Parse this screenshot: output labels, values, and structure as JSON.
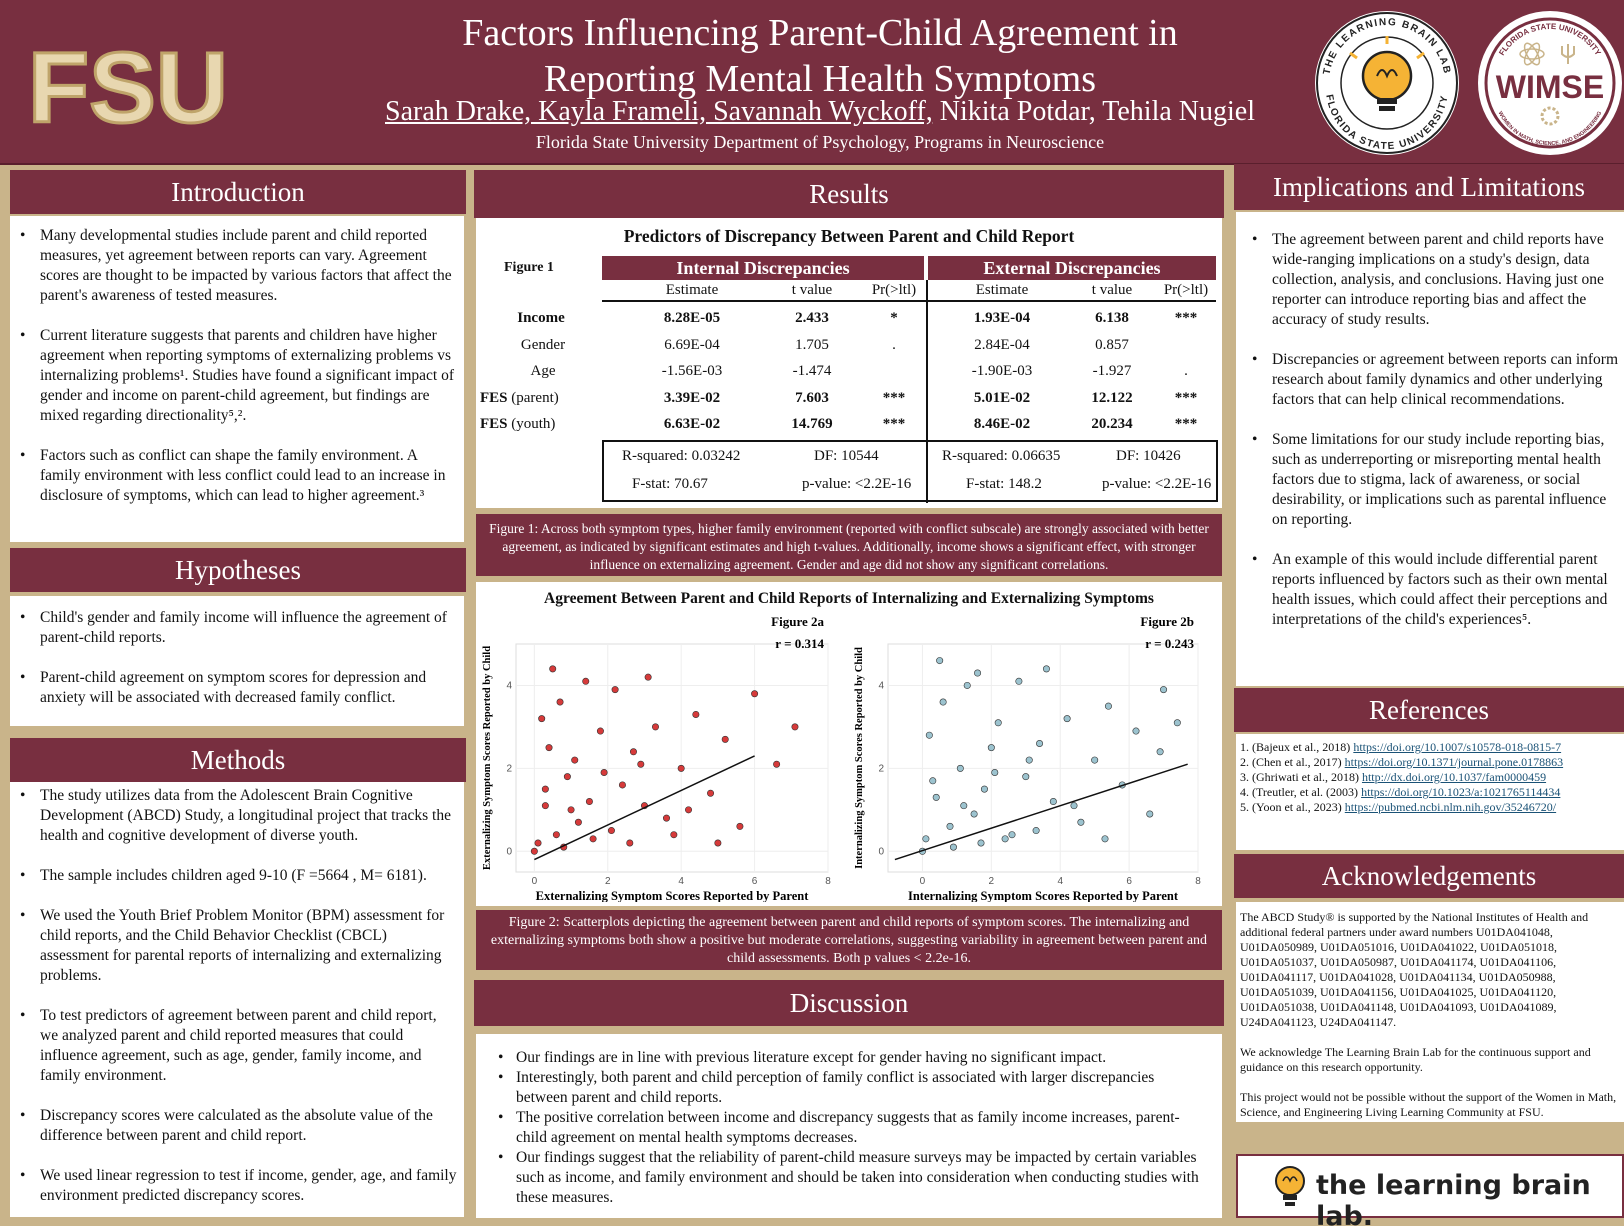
{
  "header": {
    "logo_text": "FSU",
    "title_line1": "Factors Influencing Parent-Child Agreement in",
    "title_line2": "Reporting Mental Health Symptoms",
    "authors_underlined": "Sarah Drake, Kayla Frameli, Savannah Wyckoff,",
    "authors_rest": " Nikita Potdar, Tehila Nugiel",
    "affiliation": "Florida State University Department of Psychology, Programs in Neuroscience",
    "lab_seal_top": "THE LEARNING BRAIN LAB",
    "lab_seal_bottom": "FLORIDA STATE UNIVERSITY",
    "wimse_top": "FLORIDA STATE UNIVERSITY",
    "wimse_word": "WIMSE",
    "wimse_bottom": "WOMEN IN MATH, SCIENCE, AND ENGINEERING"
  },
  "introduction": {
    "heading": "Introduction",
    "items": [
      "Many developmental studies include parent and child reported measures, yet agreement between reports can vary. Agreement scores are thought to be impacted by various factors that affect the parent's awareness of tested measures.",
      "Current literature suggests that parents and children have higher agreement when reporting symptoms of externalizing problems vs internalizing problems¹. Studies have found a significant impact of gender and income on parent-child agreement, but findings are mixed regarding directionality⁵,².",
      "Factors such as conflict can shape the family environment. A family environment with less conflict could lead to an increase in disclosure of symptoms, which can lead to higher agreement.³"
    ]
  },
  "hypotheses": {
    "heading": "Hypotheses",
    "items": [
      "Child's gender and family income will influence the agreement of parent-child reports.",
      "Parent-child agreement on symptom scores for depression and anxiety will be associated with decreased family conflict."
    ]
  },
  "methods": {
    "heading": "Methods",
    "items": [
      "The study utilizes data from the Adolescent Brain Cognitive Development (ABCD) Study, a longitudinal project that tracks the health and cognitive development of diverse youth.",
      "The sample includes children aged 9-10 (F =5664 , M= 6181).",
      "We used the Youth Brief Problem Monitor (BPM) assessment for child reports, and the Child Behavior Checklist (CBCL) assessment for parental reports of internalizing and externalizing problems.",
      "To test predictors of agreement between parent and child report, we analyzed parent and child reported measures that could influence agreement, such as age, gender, family income, and family environment.",
      "Discrepancy scores were calculated as the absolute value of the difference between parent and child report.",
      "We used linear regression to test if income, gender, age, and family environment predicted discrepancy scores."
    ]
  },
  "results": {
    "heading": "Results",
    "table_title": "Predictors of Discrepancy Between Parent and Child Report",
    "figure_label": "Figure 1",
    "internal_header": "Internal Discrepancies",
    "external_header": "External Discrepancies",
    "col_estimate": "Estimate",
    "col_t": "t value",
    "col_p": "Pr(>ltl)",
    "rows": [
      {
        "name": "Income",
        "bold": true,
        "ie": "8.28E-05",
        "it": "2.433",
        "ip": "*",
        "ee": "1.93E-04",
        "et": "6.138",
        "ep": "***"
      },
      {
        "name": "Gender",
        "bold": false,
        "ie": "6.69E-04",
        "it": "1.705",
        "ip": ".",
        "ee": "2.84E-04",
        "et": "0.857",
        "ep": ""
      },
      {
        "name": "Age",
        "bold": false,
        "ie": "-1.56E-03",
        "it": "-1.474",
        "ip": "",
        "ee": "-1.90E-03",
        "et": "-1.927",
        "ep": "."
      },
      {
        "name": "FES",
        "sub": "(parent)",
        "bold": true,
        "ie": "3.39E-02",
        "it": "7.603",
        "ip": "***",
        "ee": "5.01E-02",
        "et": "12.122",
        "ep": "***"
      },
      {
        "name": "FES",
        "sub": "(youth)",
        "bold": true,
        "ie": "6.63E-02",
        "it": "14.769",
        "ip": "***",
        "ee": "8.46E-02",
        "et": "20.234",
        "ep": "***"
      }
    ],
    "int_rsq": "R-squared: 0.03242",
    "int_df": "DF: 10544",
    "int_f": "F-stat: 70.67",
    "int_p": "p-value: <2.2E-16",
    "ext_rsq": "R-squared: 0.06635",
    "ext_df": "DF: 10426",
    "ext_f": "F-stat: 148.2",
    "ext_p": "p-value: <2.2E-16",
    "fig1_caption": "Figure 1: Across both symptom types, higher family environment (reported with conflict subscale) are strongly associated with better agreement, as indicated by significant estimates and high t-values. Additionally, income shows a significant effect, with stronger influence on externalizing agreement. Gender and age did not show any significant correlations.",
    "scatter_title": "Agreement Between Parent and Child Reports of Internalizing and Externalizing Symptoms",
    "fig2_caption": "Figure 2: Scatterplots depicting the agreement between parent and child reports of symptom scores. The internalizing and externalizing symptoms both show a positive but moderate correlations, suggesting variability in agreement between parent and child assessments. Both p values < 2.2e-16."
  },
  "chart_data": [
    {
      "type": "scatter",
      "figure_label": "Figure 2a",
      "annotation": "r = 0.314",
      "xlabel": "Externalizing  Symptom Scores Reported by Parent",
      "ylabel": "Externalizing Symptom Scores Reported by Child",
      "xlim": [
        -0.5,
        8
      ],
      "ylim": [
        -0.5,
        5
      ],
      "xticks": [
        0,
        2,
        4,
        6,
        8
      ],
      "yticks": [
        0,
        2,
        4
      ],
      "color": "#d63a3a",
      "trend": {
        "x": [
          0,
          6
        ],
        "y": [
          -0.2,
          2.3
        ]
      },
      "points": [
        [
          0.1,
          0.2
        ],
        [
          0.3,
          1.1
        ],
        [
          0.6,
          0.4
        ],
        [
          0.9,
          1.8
        ],
        [
          1.2,
          0.7
        ],
        [
          0.4,
          2.5
        ],
        [
          1.5,
          1.2
        ],
        [
          1.8,
          2.9
        ],
        [
          2.1,
          0.5
        ],
        [
          2.4,
          1.6
        ],
        [
          0.2,
          3.2
        ],
        [
          0.7,
          3.6
        ],
        [
          1.1,
          2.2
        ],
        [
          2.7,
          2.4
        ],
        [
          3.0,
          1.1
        ],
        [
          3.3,
          3.0
        ],
        [
          3.6,
          0.8
        ],
        [
          4.0,
          2.0
        ],
        [
          4.4,
          3.3
        ],
        [
          4.8,
          1.4
        ],
        [
          5.2,
          2.7
        ],
        [
          5.6,
          0.6
        ],
        [
          6.0,
          3.8
        ],
        [
          1.4,
          4.1
        ],
        [
          0.5,
          4.4
        ],
        [
          2.2,
          3.9
        ],
        [
          3.1,
          4.2
        ],
        [
          6.6,
          2.1
        ],
        [
          7.1,
          3.0
        ],
        [
          0.0,
          0.0
        ],
        [
          0.8,
          0.1
        ],
        [
          1.6,
          0.3
        ],
        [
          2.6,
          0.2
        ],
        [
          3.8,
          0.4
        ],
        [
          0.3,
          1.5
        ],
        [
          1.0,
          1.0
        ],
        [
          1.9,
          1.9
        ],
        [
          2.9,
          2.1
        ],
        [
          4.2,
          1.0
        ],
        [
          5.0,
          0.2
        ]
      ]
    },
    {
      "type": "scatter",
      "figure_label": "Figure 2b",
      "annotation": "r = 0.243",
      "xlabel": "Internalizing Symptom Scores Reported by Parent",
      "ylabel": "Internalizing Symptom Scores Reported by Child",
      "xlim": [
        -1,
        8
      ],
      "ylim": [
        -0.5,
        5
      ],
      "xticks": [
        0,
        2,
        4,
        6,
        8
      ],
      "yticks": [
        0,
        2,
        4
      ],
      "color": "#9cc3cf",
      "trend": {
        "x": [
          -0.8,
          7.7
        ],
        "y": [
          -0.2,
          2.1
        ]
      },
      "points": [
        [
          0.1,
          0.3
        ],
        [
          0.4,
          1.3
        ],
        [
          0.8,
          0.6
        ],
        [
          1.1,
          2.0
        ],
        [
          1.5,
          0.9
        ],
        [
          0.2,
          2.8
        ],
        [
          1.8,
          1.5
        ],
        [
          2.2,
          3.1
        ],
        [
          2.6,
          0.4
        ],
        [
          3.0,
          1.8
        ],
        [
          0.6,
          3.6
        ],
        [
          1.3,
          4.0
        ],
        [
          2.0,
          2.5
        ],
        [
          3.4,
          2.6
        ],
        [
          3.8,
          1.2
        ],
        [
          4.2,
          3.2
        ],
        [
          4.6,
          0.7
        ],
        [
          5.0,
          2.2
        ],
        [
          5.4,
          3.5
        ],
        [
          5.8,
          1.6
        ],
        [
          6.2,
          2.9
        ],
        [
          6.6,
          0.9
        ],
        [
          7.0,
          3.9
        ],
        [
          1.6,
          4.3
        ],
        [
          0.5,
          4.6
        ],
        [
          2.8,
          4.1
        ],
        [
          3.6,
          4.4
        ],
        [
          6.9,
          2.4
        ],
        [
          7.4,
          3.1
        ],
        [
          0.0,
          0.0
        ],
        [
          0.9,
          0.1
        ],
        [
          1.7,
          0.2
        ],
        [
          2.4,
          0.3
        ],
        [
          3.3,
          0.5
        ],
        [
          0.3,
          1.7
        ],
        [
          1.2,
          1.1
        ],
        [
          2.1,
          1.9
        ],
        [
          3.1,
          2.2
        ],
        [
          4.4,
          1.1
        ],
        [
          5.3,
          0.3
        ]
      ]
    }
  ],
  "discussion": {
    "heading": "Discussion",
    "items": [
      "Our findings are in line with previous literature except for gender having no significant impact.",
      "Interestingly, both parent and child perception of family conflict is associated with larger discrepancies between parent and child reports.",
      "The positive correlation between income and discrepancy suggests that as family income increases, parent-child agreement on mental health symptoms decreases.",
      "Our findings suggest that the reliability of parent-child measure surveys may be impacted by certain variables such as income, and family environment and should be taken into consideration when conducting studies with these measures."
    ]
  },
  "implications": {
    "heading": "Implications and Limitations",
    "items": [
      "The agreement between parent and child reports have wide-ranging implications on a study's design, data collection, analysis, and conclusions. Having just one reporter can introduce reporting bias and affect the accuracy of study results.",
      " Discrepancies or agreement between reports can inform research about family dynamics and other underlying factors that can help clinical recommendations.",
      "Some limitations for our study include reporting bias, such as underreporting or misreporting mental health factors due to stigma, lack of awareness, or social desirability, or implications such as parental influence on reporting.",
      "An example of this would include differential parent reports influenced by factors such as their own mental health issues, which could affect their perceptions and interpretations of the child's experiences⁵."
    ]
  },
  "references": {
    "heading": "References",
    "items": [
      {
        "num": "1.",
        "cite": "(Bajeux et al., 2018)",
        "url": "https://doi.org/10.1007/s10578-018-0815-7"
      },
      {
        "num": "2.",
        "cite": "(Chen et al., 2017)",
        "url": "https://doi.org/10.1371/journal.pone.0178863"
      },
      {
        "num": "3.",
        "cite": "(Ghriwati et al., 2018)",
        "url": "http://dx.doi.org/10.1037/fam0000459"
      },
      {
        "num": "4.",
        "cite": "(Treutler, et al. (2003)",
        "url": "https://doi.org/10.1023/a:1021765114434"
      },
      {
        "num": "5.",
        "cite": "(Yoon et al., 2023)",
        "url": "https://pubmed.ncbi.nlm.nih.gov/35246720/"
      }
    ]
  },
  "acknowledgements": {
    "heading": "Acknowledgements",
    "p1": "The ABCD Study® is supported by the National Institutes of Health and additional federal partners under award numbers U01DA041048, U01DA050989, U01DA051016, U01DA041022, U01DA051018, U01DA051037, U01DA050987, U01DA041174, U01DA041106, U01DA041117, U01DA041028, U01DA041134, U01DA050988, U01DA051039, U01DA041156, U01DA041025, U01DA041120, U01DA051038, U01DA041148, U01DA041093, U01DA041089, U24DA041123, U24DA041147.",
    "p2": "We acknowledge The Learning Brain Lab for the continuous support and guidance on this research opportunity.",
    "p3": "This project would not be possible without the support of the Women in Math, Science, and Engineering Living Learning Community at FSU."
  },
  "footer_logo": {
    "text": "the learning brain lab."
  },
  "colors": {
    "maroon": "#782f40",
    "gold": "#c9b48a",
    "red_points": "#d63a3a",
    "blue_points": "#9cc3cf"
  }
}
